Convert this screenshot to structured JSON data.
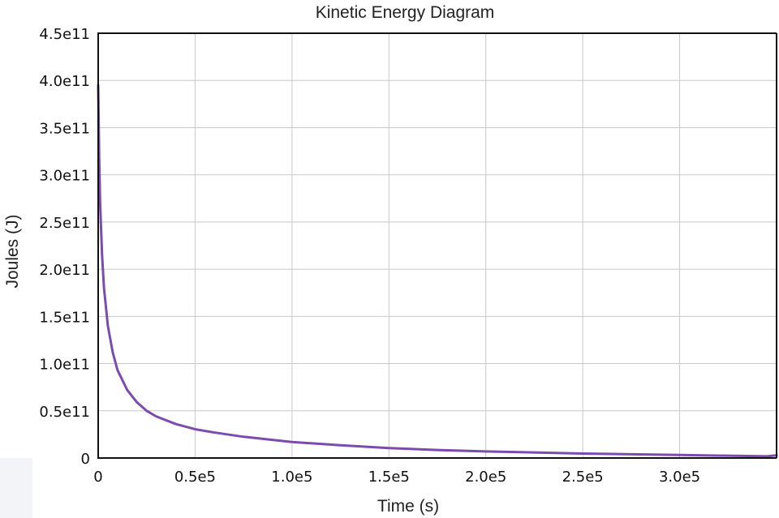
{
  "chart_data": {
    "type": "line",
    "title": "Kinetic Energy Diagram",
    "xlabel": "Time (s)",
    "ylabel": "Joules (J)",
    "xlim": [
      0,
      350000
    ],
    "ylim": [
      0,
      450000000000
    ],
    "x_ticks": [
      0,
      50000,
      100000,
      150000,
      200000,
      250000,
      300000
    ],
    "x_tick_labels": [
      "0",
      "0.5e5",
      "1.0e5",
      "1.5e5",
      "2.0e5",
      "2.5e5",
      "3.0e5"
    ],
    "y_ticks": [
      0,
      50000000000,
      100000000000,
      150000000000,
      200000000000,
      250000000000,
      300000000000,
      350000000000,
      400000000000,
      450000000000
    ],
    "y_tick_labels": [
      "0",
      "0.5e11",
      "1.0e11",
      "1.5e11",
      "2.0e11",
      "2.5e11",
      "3.0e11",
      "3.5e11",
      "4.0e11",
      "4.5e11"
    ],
    "grid": true,
    "series": [
      {
        "color": "#7b4bb0",
        "x": [
          0,
          500,
          1000,
          2000,
          3000,
          5000,
          7500,
          10000,
          15000,
          20000,
          25000,
          30000,
          40000,
          50000,
          60000,
          75000,
          100000,
          125000,
          150000,
          175000,
          200000,
          250000,
          300000,
          345000,
          350000
        ],
        "y": [
          395000000000,
          320000000000,
          270000000000,
          215000000000,
          180000000000,
          140000000000,
          112000000000,
          93000000000,
          72000000000,
          59000000000,
          50000000000,
          44000000000,
          36000000000,
          30500000000,
          27000000000,
          22500000000,
          17000000000,
          13500000000,
          10500000000,
          8500000000,
          7000000000,
          4700000000,
          3200000000,
          1800000000,
          2800000000
        ]
      }
    ]
  }
}
